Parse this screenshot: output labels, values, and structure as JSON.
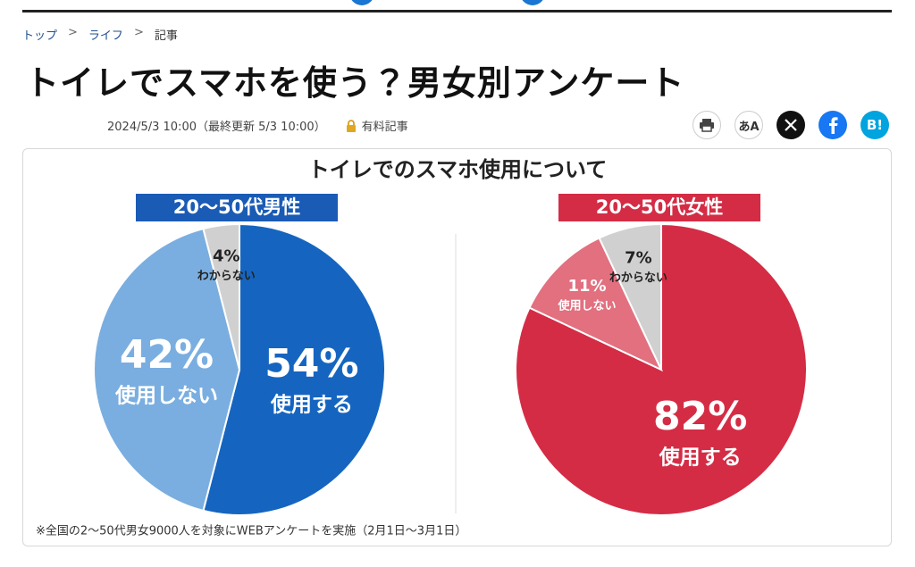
{
  "breadcrumb": [
    "トップ",
    "ライフ",
    "記事"
  ],
  "header": {
    "title": "トイレでスマホを使う？男女別アンケート",
    "date": "2024/5/3 10:00（最終更新 5/3 10:00）",
    "paid": "有料記事"
  },
  "share_buttons": {
    "font": "あA",
    "hatena": "B!"
  },
  "figure": {
    "title": "トイレでのスマホ使用について",
    "note": "※全国の2～50代男女9000人を対象にWEBアンケートを実施（2月1日～3月1日）"
  },
  "chart_data": [
    {
      "type": "pie",
      "title": "20～50代男性",
      "title_color": "#1a5bb5",
      "categories": [
        "使用する",
        "使用しない",
        "わからない"
      ],
      "values": [
        54,
        42,
        4
      ],
      "value_labels": [
        "54%",
        "42%",
        "4%"
      ],
      "colors": [
        "#1565c0",
        "#7aaee0",
        "#d0d0d0"
      ]
    },
    {
      "type": "pie",
      "title": "20～50代女性",
      "title_color": "#d42c45",
      "categories": [
        "使用する",
        "使用しない",
        "わからない"
      ],
      "values": [
        82,
        11,
        7
      ],
      "value_labels": [
        "82%",
        "11%",
        "7%"
      ],
      "colors": [
        "#d42c45",
        "#e2707f",
        "#d0d0d0"
      ]
    }
  ]
}
